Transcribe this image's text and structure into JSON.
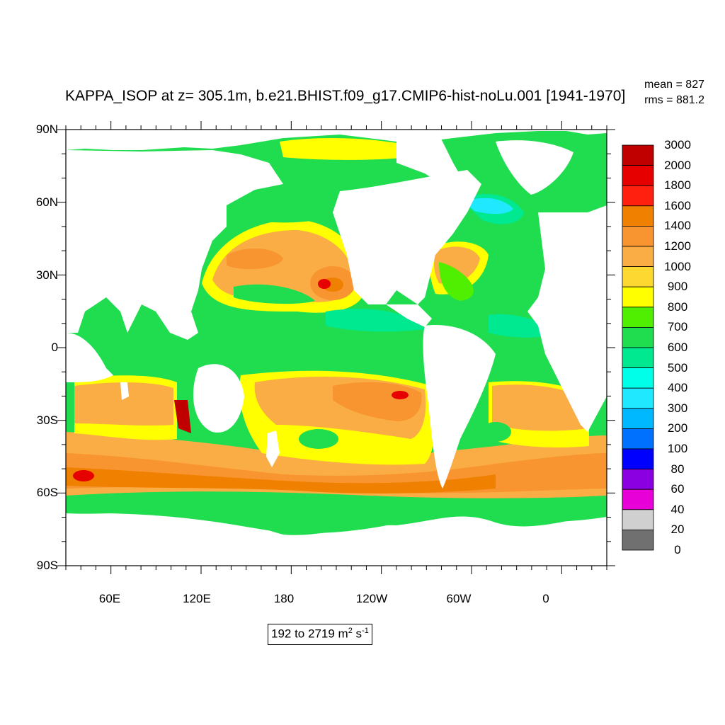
{
  "figure": {
    "title": "KAPPA_ISOP at z= 305.1m, b.e21.BHIST.f09_g17.CMIP6-hist-noLu.001 [1941-1970]",
    "stats": {
      "mean": "mean = 827",
      "rms": "rms = 881.2"
    },
    "range_label": {
      "prefix": "192 to 2719 m",
      "exp1": "2",
      "mid": " s",
      "exp2": "-1"
    }
  },
  "map": {
    "projection": "cylindrical equidistant",
    "lon_range": [
      30,
      390
    ],
    "lat_range": [
      -90,
      90
    ],
    "lat_ticks": [
      {
        "value": 90,
        "label": "90N"
      },
      {
        "value": 60,
        "label": "60N"
      },
      {
        "value": 30,
        "label": "30N"
      },
      {
        "value": 0,
        "label": "0"
      },
      {
        "value": -30,
        "label": "30S"
      },
      {
        "value": -60,
        "label": "60S"
      },
      {
        "value": -90,
        "label": "90S"
      }
    ],
    "lon_ticks": [
      {
        "value": 60,
        "label": "60E"
      },
      {
        "value": 120,
        "label": "120E"
      },
      {
        "value": 180,
        "label": "180"
      },
      {
        "value": 240,
        "label": "120W"
      },
      {
        "value": 300,
        "label": "60W"
      },
      {
        "value": 360,
        "label": "0"
      }
    ]
  },
  "colorbar": {
    "levels": [
      "3000",
      "2000",
      "1800",
      "1600",
      "1400",
      "1200",
      "1000",
      "900",
      "800",
      "700",
      "600",
      "500",
      "400",
      "300",
      "200",
      "100",
      "80",
      "60",
      "40",
      "20",
      "0"
    ],
    "colors": [
      "#c00000",
      "#e60000",
      "#ff2010",
      "#f08000",
      "#f89530",
      "#faad45",
      "#fdd830",
      "#ffff00",
      "#50ee00",
      "#20dd50",
      "#00e890",
      "#00ffe8",
      "#20e8ff",
      "#00b8ff",
      "#0070ff",
      "#0000ff",
      "#8a00e0",
      "#e800d8",
      "#d0d0d0",
      "#707070"
    ]
  },
  "legend_colors": {
    "land": "#ffffff",
    "ocean_base": "#20dd50"
  }
}
